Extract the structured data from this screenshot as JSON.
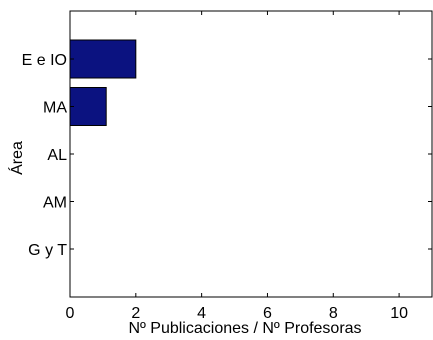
{
  "chart_data": {
    "type": "bar",
    "orientation": "horizontal",
    "categories": [
      "E e IO",
      "MA",
      "AL",
      "AM",
      "G y T"
    ],
    "values": [
      2.0,
      1.1,
      0,
      0,
      0
    ],
    "xlabel": "Nº Publicaciones / Nº Profesoras",
    "ylabel": "Área",
    "xlim": [
      0,
      11
    ],
    "xticks": [
      "0",
      "2",
      "4",
      "6",
      "8",
      "10"
    ],
    "grid": false,
    "bar_color": "#0b1280"
  }
}
